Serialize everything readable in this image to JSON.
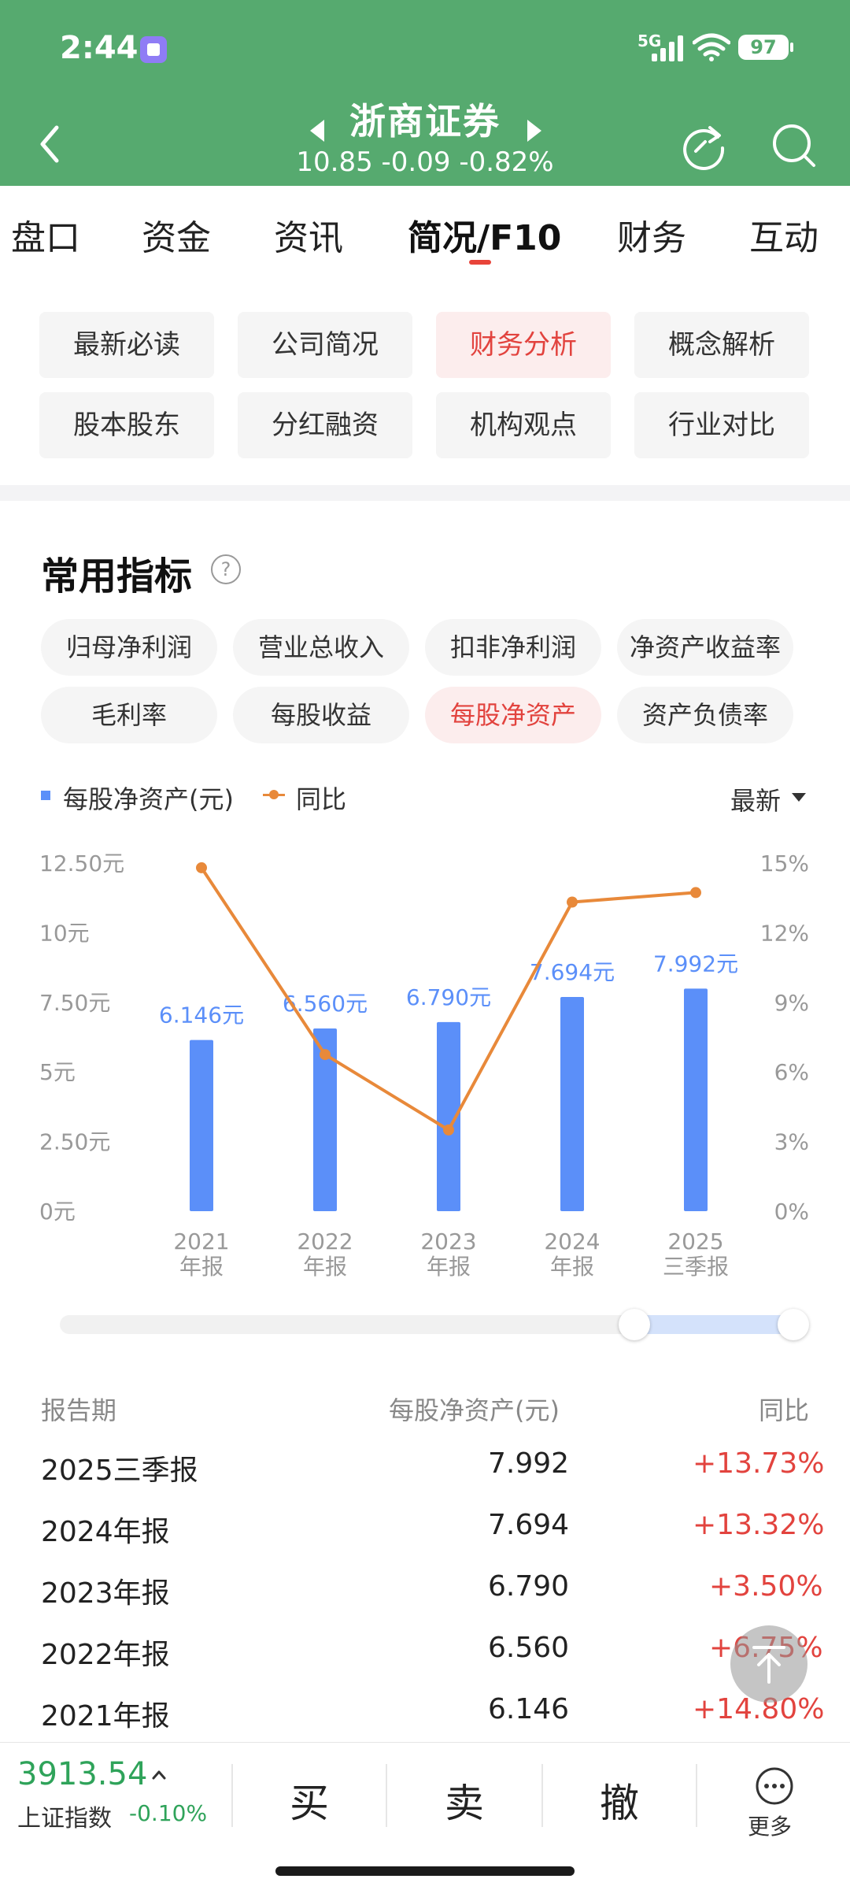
{
  "status_bar": {
    "time": "2:44",
    "network": "5G",
    "battery": "97"
  },
  "header": {
    "title": "浙商证券",
    "quote": "10.85 -0.09 -0.82%"
  },
  "main_tabs": [
    {
      "label": "盘口"
    },
    {
      "label": "资金"
    },
    {
      "label": "资讯"
    },
    {
      "label": "简况/F10",
      "active": true
    },
    {
      "label": "财务"
    },
    {
      "label": "互动"
    }
  ],
  "sub_tags": [
    {
      "label": "最新必读"
    },
    {
      "label": "公司简况"
    },
    {
      "label": "财务分析",
      "active": true
    },
    {
      "label": "概念解析"
    },
    {
      "label": "股本股东"
    },
    {
      "label": "分红融资"
    },
    {
      "label": "机构观点"
    },
    {
      "label": "行业对比"
    }
  ],
  "section": {
    "title": "常用指标",
    "help": "?"
  },
  "metric_pills": [
    {
      "label": "归母净利润"
    },
    {
      "label": "营业总收入"
    },
    {
      "label": "扣非净利润"
    },
    {
      "label": "净资产收益率"
    },
    {
      "label": "毛利率"
    },
    {
      "label": "每股收益"
    },
    {
      "label": "每股净资产",
      "active": true
    },
    {
      "label": "资产负债率"
    }
  ],
  "legend": {
    "bar_label": "每股净资产(元)",
    "line_label": "同比",
    "period_select": "最新"
  },
  "colors": {
    "header_green": "#56AA6F",
    "bar_blue": "#5B8FF9",
    "line_orange": "#E8893A",
    "up_red": "#E2433E",
    "down_green": "#2FA35A"
  },
  "chart_data": {
    "type": "bar",
    "categories": [
      {
        "year": "2021",
        "kind": "年报"
      },
      {
        "year": "2022",
        "kind": "年报"
      },
      {
        "year": "2023",
        "kind": "年报"
      },
      {
        "year": "2024",
        "kind": "年报"
      },
      {
        "year": "2025",
        "kind": "三季报"
      }
    ],
    "series": [
      {
        "name": "每股净资产(元)",
        "type": "bar",
        "axis": "left",
        "values": [
          6.146,
          6.56,
          6.79,
          7.694,
          7.992
        ],
        "data_labels": [
          "6.146元",
          "6.560元",
          "6.790元",
          "7.694元",
          "7.992元"
        ]
      },
      {
        "name": "同比",
        "type": "line",
        "axis": "right",
        "values": [
          14.8,
          6.75,
          3.5,
          13.32,
          13.73
        ]
      }
    ],
    "y_left": {
      "ticks": [
        "0元",
        "2.50元",
        "5元",
        "7.50元",
        "10元",
        "12.50元"
      ],
      "ylim": [
        0,
        12.5
      ]
    },
    "y_right": {
      "ticks": [
        "0%",
        "3%",
        "6%",
        "9%",
        "12%",
        "15%"
      ],
      "ylim": [
        0,
        15
      ]
    },
    "legend_position": "top-left",
    "grid": false
  },
  "table": {
    "headers": [
      "报告期",
      "每股净资产(元)",
      "同比"
    ],
    "rows": [
      {
        "period": "2025三季报",
        "value": "7.992",
        "yoy": "+13.73%"
      },
      {
        "period": "2024年报",
        "value": "7.694",
        "yoy": "+13.32%"
      },
      {
        "period": "2023年报",
        "value": "6.790",
        "yoy": "+3.50%"
      },
      {
        "period": "2022年报",
        "value": "6.560",
        "yoy": "+6.75%"
      },
      {
        "period": "2021年报",
        "value": "6.146",
        "yoy": "+14.80%"
      }
    ]
  },
  "bottom_bar": {
    "index_value": "3913.54",
    "index_name": "上证指数",
    "index_change": "-0.10%",
    "buy": "买",
    "sell": "卖",
    "cancel": "撤",
    "more": "更多"
  }
}
